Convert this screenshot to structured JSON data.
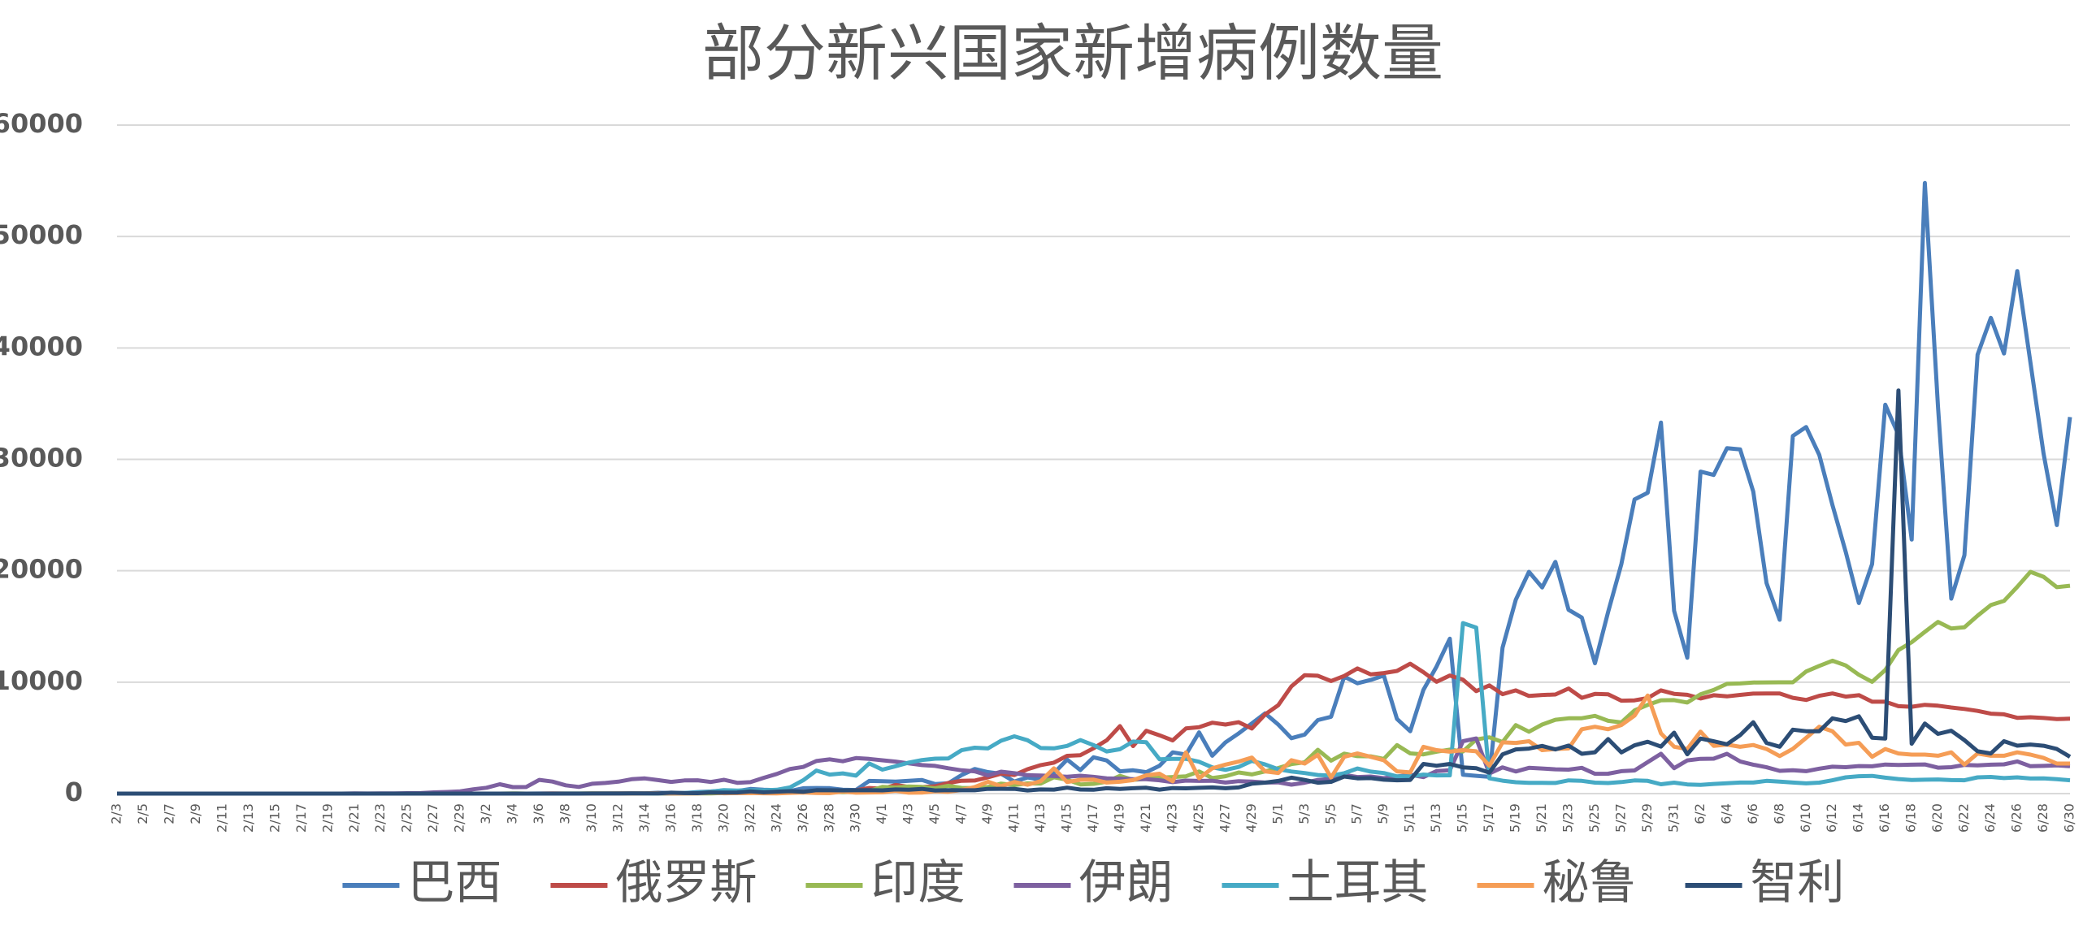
{
  "chart_data": {
    "type": "line",
    "title": "部分新兴国家新增病例数量",
    "categories": [
      "2/3",
      null,
      "2/5",
      null,
      "2/7",
      null,
      "2/9",
      null,
      "2/11",
      null,
      "2/13",
      null,
      "2/15",
      null,
      "2/17",
      null,
      "2/19",
      null,
      "2/21",
      null,
      "2/23",
      null,
      "2/25",
      null,
      "2/27",
      null,
      "2/29",
      null,
      "3/2",
      null,
      "3/4",
      null,
      "3/6",
      null,
      "3/8",
      null,
      "3/10",
      null,
      "3/12",
      null,
      "3/14",
      null,
      "3/16",
      null,
      "3/18",
      null,
      "3/20",
      null,
      "3/22",
      null,
      "3/24",
      null,
      "3/26",
      null,
      "3/28",
      null,
      "3/30",
      null,
      "4/1",
      null,
      "4/3",
      null,
      "4/5",
      null,
      "4/7",
      null,
      "4/9",
      null,
      "4/11",
      null,
      "4/13",
      null,
      "4/15",
      null,
      "4/17",
      null,
      "4/19",
      null,
      "4/21",
      null,
      "4/23",
      null,
      "4/25",
      null,
      "4/27",
      null,
      "4/29",
      null,
      "5/1",
      null,
      "5/3",
      null,
      "5/5",
      null,
      "5/7",
      null,
      "5/9",
      null,
      "5/11",
      null,
      "5/13",
      null,
      "5/15",
      null,
      "5/17",
      null,
      "5/19",
      null,
      "5/21",
      null,
      "5/23",
      null,
      "5/25",
      null,
      "5/27",
      null,
      "5/29",
      null,
      "5/31",
      null,
      "6/2",
      null,
      "6/4",
      null,
      "6/6",
      null,
      "6/8",
      null,
      "6/10",
      null,
      "6/12",
      null,
      "6/14",
      null,
      "6/16",
      null,
      "6/18",
      null,
      "6/20",
      null,
      "6/22",
      null,
      "6/24",
      null,
      "6/26",
      null,
      "6/28",
      null,
      "6/30"
    ],
    "series": [
      {
        "name": "巴西",
        "color": "#4a7ebb",
        "values": [
          0,
          0,
          0,
          0,
          0,
          0,
          0,
          0,
          0,
          0,
          0,
          0,
          0,
          0,
          0,
          0,
          0,
          0,
          0,
          0,
          0,
          0,
          0,
          0,
          0,
          0,
          0,
          0,
          0,
          0,
          1,
          2,
          5,
          6,
          5,
          6,
          9,
          18,
          25,
          21,
          23,
          79,
          34,
          57,
          137,
          193,
          283,
          224,
          418,
          345,
          310,
          232,
          482,
          502,
          487,
          352,
          323,
          1138,
          1119,
          1074,
          1146,
          1222,
          852,
          926,
          1661,
          2210,
          1930,
          1781,
          1089,
          1442,
          1261,
          1832,
          3058,
          2105,
          3257,
          2976,
          1996,
          2089,
          1927,
          2498,
          3700,
          3500,
          5500,
          3400,
          4600,
          5400,
          6300,
          7200,
          6200,
          4970,
          5300,
          6600,
          6900,
          10500,
          9900,
          10200,
          10600,
          6700,
          5600,
          9300,
          11400,
          13900,
          1700,
          1600,
          1500,
          13100,
          17400,
          19900,
          18500,
          20800,
          16500,
          15800,
          11700,
          16300,
          20600,
          26400,
          27000,
          33300,
          16400,
          12200,
          28900,
          28600,
          31000,
          30900,
          27100,
          18900,
          15600,
          32100,
          32900,
          30400,
          25900,
          21700,
          17100,
          20600,
          34900,
          32200,
          22800,
          54800,
          34700,
          17500,
          21400,
          39400,
          42700,
          39500,
          46900,
          38700,
          30500,
          24100,
          33800
        ]
      },
      {
        "name": "俄罗斯",
        "color": "#be4b48",
        "values": [
          0,
          0,
          0,
          0,
          0,
          0,
          0,
          0,
          0,
          0,
          0,
          0,
          0,
          0,
          0,
          0,
          0,
          0,
          0,
          0,
          0,
          0,
          0,
          0,
          0,
          0,
          0,
          0,
          1,
          0,
          1,
          0,
          0,
          4,
          3,
          0,
          1,
          3,
          6,
          11,
          0,
          25,
          4,
          30,
          33,
          52,
          53,
          53,
          62,
          71,
          57,
          163,
          182,
          196,
          228,
          270,
          302,
          500,
          440,
          771,
          601,
          582,
          658,
          954,
          1154,
          1175,
          1459,
          1786,
          1667,
          2186,
          2558,
          2774,
          3388,
          3448,
          4070,
          4785,
          6060,
          4268,
          5642,
          5236,
          4774,
          5849,
          5966,
          6361,
          6198,
          6411,
          5841,
          7099,
          7933,
          9623,
          10633,
          10581,
          10102,
          10559,
          11231,
          10699,
          10817,
          11012,
          11656,
          10899,
          10028,
          10598,
          10222,
          9200,
          9709,
          8926,
          9263,
          8764,
          8849,
          8894,
          9434,
          8599,
          8946,
          8915,
          8338,
          8371,
          8572,
          9268,
          8952,
          8863,
          8536,
          8831,
          8726,
          8855,
          8976,
          8984,
          8985,
          8595,
          8404,
          8779,
          8987,
          8706,
          8835,
          8246,
          8248,
          7843,
          7790,
          7972,
          7889,
          7728,
          7600,
          7425,
          7176,
          7113,
          6800,
          6852,
          6791,
          6693,
          6719
        ]
      },
      {
        "name": "印度",
        "color": "#98b954",
        "values": [
          0,
          0,
          0,
          0,
          0,
          0,
          0,
          0,
          0,
          0,
          0,
          0,
          0,
          0,
          0,
          0,
          0,
          0,
          0,
          0,
          0,
          0,
          0,
          0,
          0,
          0,
          0,
          0,
          2,
          1,
          22,
          2,
          1,
          3,
          5,
          9,
          15,
          8,
          10,
          10,
          7,
          13,
          23,
          12,
          25,
          24,
          55,
          75,
          69,
          90,
          55,
          103,
          163,
          154,
          182,
          125,
          175,
          224,
          601,
          547,
          639,
          601,
          472,
          704,
          508,
          485,
          591,
          896,
          768,
          918,
          905,
          1463,
          1248,
          826,
          878,
          1061,
          1597,
          1235,
          1333,
          1429,
          1486,
          1553,
          1990,
          1396,
          1561,
          1897,
          1718,
          1993,
          2293,
          2644,
          2806,
          3932,
          2963,
          3587,
          3364,
          3344,
          3113,
          4353,
          3607,
          3524,
          3763,
          3942,
          3787,
          4864,
          5050,
          4628,
          6147,
          5553,
          6198,
          6629,
          6760,
          6767,
          6977,
          6535,
          6387,
          7466,
          7964,
          8380,
          8392,
          8171,
          8909,
          9304,
          9851,
          9887,
          9971,
          9983,
          9987,
          9985,
          10956,
          11458,
          11929,
          11502,
          10667,
          10032,
          11090,
          12881,
          13586,
          14516,
          15413,
          14821,
          14933,
          15968,
          16922,
          17296,
          18552,
          19906,
          19459,
          18522,
          18653
        ]
      },
      {
        "name": "伊朗",
        "color": "#7d60a0",
        "values": [
          0,
          0,
          0,
          0,
          0,
          0,
          0,
          0,
          0,
          0,
          0,
          0,
          0,
          0,
          0,
          0,
          2,
          3,
          13,
          10,
          15,
          18,
          34,
          44,
          106,
          143,
          205,
          385,
          523,
          835,
          586,
          591,
          1234,
          1076,
          743,
          595,
          881,
          958,
          1075,
          1289,
          1365,
          1209,
          1053,
          1178,
          1192,
          1046,
          1237,
          966,
          1028,
          1411,
          1762,
          2206,
          2389,
          2926,
          3076,
          2901,
          3186,
          3110,
          2987,
          2875,
          2715,
          2560,
          2483,
          2274,
          2089,
          1997,
          1634,
          1972,
          1837,
          1657,
          1617,
          1574,
          1512,
          1606,
          1499,
          1374,
          1343,
          1294,
          1297,
          1194,
          1030,
          1168,
          1134,
          1153,
          991,
          1112,
          1073,
          993,
          1006,
          802,
          976,
          1223,
          1323,
          1680,
          1485,
          1529,
          1383,
          1529,
          1683,
          1481,
          2018,
          2093,
          4700,
          4950,
          1806,
          2353,
          1983,
          2314,
          2251,
          2180,
          2148,
          2311,
          1776,
          1787,
          2011,
          2080,
          2819,
          3574,
          2282,
          2979,
          3117,
          3134,
          3574,
          2886,
          2596,
          2364,
          2043,
          2095,
          2011,
          2238,
          2410,
          2369,
          2472,
          2449,
          2612,
          2563,
          2595,
          2615,
          2322,
          2368,
          2573,
          2531,
          2595,
          2628,
          2889,
          2456,
          2489,
          2536,
          2457
        ]
      },
      {
        "name": "土耳其",
        "color": "#46aac5",
        "values": [
          0,
          0,
          0,
          0,
          0,
          0,
          0,
          0,
          0,
          0,
          0,
          0,
          0,
          0,
          0,
          0,
          0,
          0,
          0,
          0,
          0,
          0,
          0,
          0,
          0,
          0,
          0,
          0,
          0,
          0,
          0,
          0,
          0,
          0,
          0,
          0,
          0,
          1,
          0,
          4,
          1,
          12,
          29,
          51,
          93,
          168,
          311,
          277,
          289,
          293,
          343,
          561,
          1196,
          2069,
          1704,
          1815,
          1610,
          2704,
          2148,
          2456,
          2786,
          3013,
          3135,
          3148,
          3892,
          4117,
          4056,
          4747,
          5138,
          4789,
          4093,
          4062,
          4281,
          4801,
          4353,
          3783,
          3977,
          4674,
          4611,
          3083,
          3116,
          3122,
          2861,
          2357,
          2131,
          2392,
          2936,
          2615,
          2188,
          1983,
          1848,
          1670,
          1614,
          1832,
          2253,
          1977,
          1848,
          1546,
          1542,
          1704,
          1635,
          1639,
          15300,
          14900,
          1368,
          1158,
          1022,
          972,
          961,
          952,
          1186,
          1141,
          987,
          948,
          1035,
          1182,
          1141,
          839,
          983,
          827,
          786,
          867,
          930,
          988,
          989,
          1141,
          1070,
          993,
          922,
          987,
          1195,
          1459,
          1562,
          1592,
          1429,
          1304,
          1214,
          1248,
          1268,
          1212,
          1192,
          1458,
          1492,
          1396,
          1458,
          1356,
          1374,
          1293,
          1192
        ]
      },
      {
        "name": "秘鲁",
        "color": "#f59d56",
        "values": [
          0,
          0,
          0,
          0,
          0,
          0,
          0,
          0,
          0,
          0,
          0,
          0,
          0,
          0,
          0,
          0,
          0,
          0,
          0,
          0,
          0,
          0,
          0,
          0,
          0,
          0,
          0,
          0,
          0,
          0,
          0,
          0,
          1,
          5,
          1,
          2,
          4,
          4,
          6,
          10,
          16,
          43,
          15,
          26,
          11,
          89,
          29,
          45,
          55,
          32,
          21,
          64,
          100,
          55,
          45,
          181,
          80,
          100,
          114,
          257,
          77,
          89,
          209,
          171,
          318,
          580,
          1064,
          665,
          1043,
          798,
          1118,
          2265,
          1035,
          1242,
          1257,
          992,
          1065,
          1208,
          1642,
          1787,
          1100,
          3700,
          1380,
          2265,
          2600,
          2874,
          3237,
          2000,
          1845,
          3000,
          2700,
          3484,
          1444,
          3300,
          3600,
          3300,
          3000,
          2000,
          1900,
          4200,
          3900,
          3764,
          3900,
          3800,
          2500,
          4600,
          4550,
          4700,
          3900,
          4000,
          4056,
          5772,
          6000,
          5772,
          6154,
          7000,
          8800,
          5400,
          4205,
          4000,
          5563,
          4284,
          4400,
          4202,
          4358,
          4000,
          3369,
          4020,
          5000,
          6000,
          5600,
          4400,
          4558,
          3300,
          4000,
          3600,
          3500,
          3500,
          3400,
          3700,
          2600,
          3600,
          3400,
          3400,
          3700,
          3500,
          3200,
          2700,
          2700
        ]
      },
      {
        "name": "智利",
        "color": "#2c4d75",
        "values": [
          0,
          0,
          0,
          0,
          0,
          0,
          0,
          0,
          0,
          0,
          0,
          0,
          0,
          0,
          0,
          0,
          0,
          0,
          0,
          0,
          0,
          0,
          0,
          0,
          0,
          0,
          0,
          0,
          0,
          1,
          2,
          1,
          1,
          0,
          3,
          3,
          4,
          10,
          10,
          23,
          18,
          14,
          81,
          45,
          37,
          104,
          92,
          103,
          198,
          114,
          176,
          220,
          164,
          304,
          299,
          293,
          299,
          310,
          293,
          373,
          351,
          424,
          286,
          305,
          296,
          301,
          426,
          430,
          426,
          286,
          373,
          358,
          529,
          367,
          341,
          482,
          425,
          478,
          523,
          355,
          497,
          473,
          514,
          552,
          482,
          552,
          888,
          985,
          1138,
          1427,
          1228,
          980,
          1059,
          1533,
          1373,
          1391,
          1247,
          1197,
          1228,
          2660,
          2502,
          2659,
          2355,
          2278,
          1880,
          3520,
          3964,
          4038,
          4276,
          3964,
          4308,
          3570,
          3709,
          4895,
          3696,
          4328,
          4654,
          4220,
          5471,
          3527,
          4942,
          4696,
          4427,
          5240,
          6405,
          4552,
          4207,
          5737,
          5596,
          5596,
          6754,
          6509,
          6938,
          5013,
          4945,
          36179,
          4475,
          6290,
          5355,
          5645,
          4800,
          3800,
          3600,
          4700,
          4300,
          4400,
          4296,
          4000,
          3300
        ]
      }
    ],
    "ylim": [
      0,
      60000
    ],
    "yticks": [
      0,
      10000,
      20000,
      30000,
      40000,
      50000,
      60000
    ],
    "grid": true,
    "legend": "bottom"
  }
}
